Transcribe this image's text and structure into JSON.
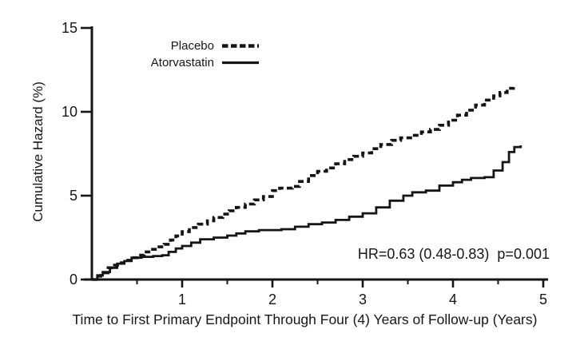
{
  "chart_data": {
    "type": "line",
    "line_shape": "step-after",
    "title": "",
    "xlabel": "Time to First Primary Endpoint Through Four (4) Years of Follow-up (Years)",
    "ylabel": "Cumulative Hazard (%)",
    "annotation": "HR=0.63 (0.48-0.83)  p=0.001",
    "xlim": [
      0,
      5
    ],
    "ylim": [
      0,
      15
    ],
    "x_ticks": [
      1,
      2,
      3,
      4,
      5
    ],
    "x_minor_ticks": [
      0.5,
      1.5,
      2.5,
      3.5,
      4.5
    ],
    "y_ticks": [
      0,
      5,
      10,
      15
    ],
    "grid": false,
    "legend_position": "top-left-inside",
    "colors": {
      "line": "#151515",
      "background": "#ffffff"
    },
    "series": [
      {
        "name": "Placebo",
        "line_style": "dashed",
        "points": [
          [
            0,
            0
          ],
          [
            0.05,
            0.2
          ],
          [
            0.1,
            0.4
          ],
          [
            0.18,
            0.7
          ],
          [
            0.25,
            0.85
          ],
          [
            0.3,
            1.0
          ],
          [
            0.38,
            1.15
          ],
          [
            0.45,
            1.3
          ],
          [
            0.52,
            1.45
          ],
          [
            0.58,
            1.65
          ],
          [
            0.65,
            1.8
          ],
          [
            0.72,
            1.95
          ],
          [
            0.8,
            2.1
          ],
          [
            0.87,
            2.35
          ],
          [
            0.93,
            2.6
          ],
          [
            1.0,
            2.85
          ],
          [
            1.08,
            3.1
          ],
          [
            1.18,
            3.3
          ],
          [
            1.28,
            3.5
          ],
          [
            1.35,
            3.7
          ],
          [
            1.45,
            3.9
          ],
          [
            1.52,
            4.1
          ],
          [
            1.6,
            4.3
          ],
          [
            1.7,
            4.5
          ],
          [
            1.8,
            4.75
          ],
          [
            1.9,
            4.95
          ],
          [
            2.0,
            5.3
          ],
          [
            2.08,
            5.45
          ],
          [
            2.22,
            5.55
          ],
          [
            2.3,
            5.85
          ],
          [
            2.4,
            6.2
          ],
          [
            2.5,
            6.45
          ],
          [
            2.6,
            6.65
          ],
          [
            2.7,
            6.9
          ],
          [
            2.8,
            7.15
          ],
          [
            2.9,
            7.35
          ],
          [
            3.0,
            7.55
          ],
          [
            3.1,
            7.8
          ],
          [
            3.2,
            8.05
          ],
          [
            3.32,
            8.3
          ],
          [
            3.42,
            8.45
          ],
          [
            3.55,
            8.6
          ],
          [
            3.65,
            8.8
          ],
          [
            3.75,
            8.95
          ],
          [
            3.85,
            9.2
          ],
          [
            3.95,
            9.5
          ],
          [
            4.05,
            9.8
          ],
          [
            4.15,
            10.1
          ],
          [
            4.25,
            10.4
          ],
          [
            4.35,
            10.7
          ],
          [
            4.45,
            10.95
          ],
          [
            4.52,
            11.15
          ],
          [
            4.6,
            11.4
          ],
          [
            4.67,
            11.55
          ]
        ]
      },
      {
        "name": "Atorvastatin",
        "line_style": "solid",
        "points": [
          [
            0,
            0
          ],
          [
            0.06,
            0.25
          ],
          [
            0.12,
            0.45
          ],
          [
            0.2,
            0.7
          ],
          [
            0.28,
            0.95
          ],
          [
            0.36,
            1.1
          ],
          [
            0.44,
            1.3
          ],
          [
            0.55,
            1.35
          ],
          [
            0.68,
            1.4
          ],
          [
            0.78,
            1.45
          ],
          [
            0.85,
            1.65
          ],
          [
            0.93,
            1.85
          ],
          [
            1.0,
            2.0
          ],
          [
            1.1,
            2.2
          ],
          [
            1.2,
            2.4
          ],
          [
            1.35,
            2.5
          ],
          [
            1.5,
            2.62
          ],
          [
            1.6,
            2.75
          ],
          [
            1.7,
            2.87
          ],
          [
            1.85,
            2.95
          ],
          [
            2.1,
            3.0
          ],
          [
            2.25,
            3.15
          ],
          [
            2.4,
            3.3
          ],
          [
            2.55,
            3.4
          ],
          [
            2.7,
            3.55
          ],
          [
            2.85,
            3.75
          ],
          [
            3.0,
            3.95
          ],
          [
            3.15,
            4.3
          ],
          [
            3.3,
            4.7
          ],
          [
            3.45,
            5.0
          ],
          [
            3.55,
            5.2
          ],
          [
            3.7,
            5.3
          ],
          [
            3.85,
            5.6
          ],
          [
            4.0,
            5.8
          ],
          [
            4.1,
            5.95
          ],
          [
            4.2,
            6.05
          ],
          [
            4.35,
            6.1
          ],
          [
            4.45,
            6.5
          ],
          [
            4.55,
            7.0
          ],
          [
            4.62,
            7.6
          ],
          [
            4.68,
            7.9
          ],
          [
            4.75,
            8.0
          ]
        ]
      }
    ]
  }
}
